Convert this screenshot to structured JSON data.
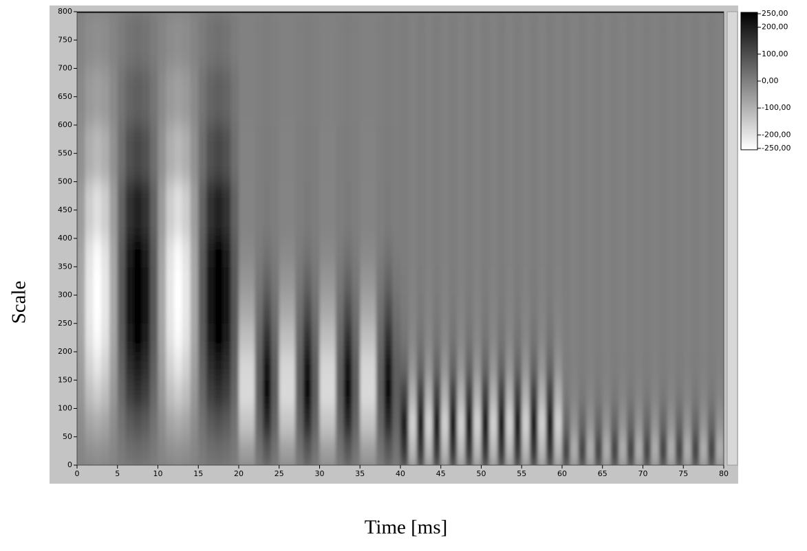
{
  "chart_data": {
    "type": "heatmap",
    "x_label": "Time [ms]",
    "y_label": "Scale",
    "xlim": [
      0,
      80
    ],
    "ylim": [
      0,
      800
    ],
    "xticks": [
      0,
      5,
      10,
      15,
      20,
      25,
      30,
      35,
      40,
      45,
      50,
      55,
      60,
      65,
      70,
      75,
      80
    ],
    "yticks": [
      0,
      50,
      100,
      150,
      200,
      250,
      300,
      350,
      400,
      450,
      500,
      550,
      600,
      650,
      700,
      750,
      800
    ],
    "zlim": [
      -250,
      250
    ],
    "zticks": [
      {
        "value": 250,
        "label": "250,00"
      },
      {
        "value": 200,
        "label": "200,00"
      },
      {
        "value": 100,
        "label": "100,00"
      },
      {
        "value": 0,
        "label": "0,00"
      },
      {
        "value": -100,
        "label": "-100,00"
      },
      {
        "value": -200,
        "label": "-200,00"
      },
      {
        "value": -250,
        "label": "-250,00"
      }
    ],
    "colormap": [
      "#ffffff",
      "#000000"
    ],
    "xbins": [
      0,
      1,
      2,
      3,
      4,
      5,
      6,
      7,
      8,
      9,
      10,
      11,
      12,
      13,
      14,
      15,
      16,
      17,
      18,
      19,
      20,
      21,
      22,
      23,
      24,
      25,
      26,
      27,
      28,
      29,
      30,
      31,
      32,
      33,
      34,
      35,
      36,
      37,
      38,
      39,
      40,
      41,
      42,
      43,
      44,
      45,
      46,
      47,
      48,
      49,
      50,
      51,
      52,
      53,
      54,
      55,
      56,
      57,
      58,
      59,
      60,
      61,
      62,
      63,
      64,
      65,
      66,
      67,
      68,
      69,
      70,
      71,
      72,
      73,
      74,
      75,
      76,
      77,
      78,
      79,
      80
    ],
    "ybins": [
      0,
      50,
      100,
      150,
      200,
      250,
      300,
      350,
      400,
      500,
      600,
      700,
      800
    ],
    "z": [
      [
        -12,
        -31,
        -38,
        -31,
        -12,
        12,
        31,
        38,
        31,
        12,
        -12,
        -31,
        -38,
        -31,
        -12,
        12,
        31,
        38,
        31,
        12,
        -62,
        -62,
        24,
        77,
        24,
        -62,
        -62,
        24,
        77,
        24,
        -62,
        -62,
        24,
        77,
        24,
        -62,
        -62,
        24,
        77,
        24,
        140,
        -112,
        140,
        -112,
        140,
        -112,
        140,
        -112,
        140,
        -112,
        140,
        -112,
        140,
        -112,
        140,
        -112,
        140,
        -112,
        140,
        -112,
        120,
        -96,
        120,
        -96,
        120,
        -96,
        120,
        -96,
        120,
        -96,
        120,
        -96,
        120,
        -96,
        120,
        -96,
        120,
        -96,
        120,
        -96
      ],
      [
        -27,
        -71,
        -88,
        -71,
        -27,
        27,
        71,
        88,
        71,
        27,
        -27,
        -71,
        -88,
        -71,
        -27,
        27,
        71,
        88,
        71,
        27,
        -134,
        -134,
        51,
        165,
        51,
        -134,
        -134,
        51,
        165,
        51,
        -134,
        -134,
        51,
        165,
        51,
        -134,
        -134,
        51,
        165,
        51,
        200,
        -160,
        200,
        -160,
        200,
        -160,
        200,
        -160,
        200,
        -160,
        200,
        -160,
        200,
        -160,
        200,
        -160,
        200,
        -160,
        200,
        -160,
        48,
        -38,
        48,
        -38,
        48,
        -38,
        48,
        -38,
        48,
        -38,
        48,
        -38,
        48,
        -38,
        48,
        -38,
        48,
        -38,
        48,
        -38
      ],
      [
        -47,
        -122,
        -150,
        -122,
        -47,
        47,
        122,
        150,
        122,
        47,
        -47,
        -122,
        -150,
        -122,
        -47,
        47,
        122,
        150,
        122,
        47,
        -178,
        -178,
        68,
        220,
        68,
        -178,
        -178,
        68,
        220,
        68,
        -178,
        -178,
        68,
        220,
        68,
        -178,
        -178,
        68,
        220,
        68,
        120,
        -96,
        120,
        -96,
        120,
        -96,
        120,
        -96,
        120,
        -96,
        120,
        -96,
        120,
        -96,
        120,
        -96,
        120,
        -96,
        120,
        -96,
        12,
        -10,
        12,
        -10,
        12,
        -10,
        12,
        -10,
        12,
        -10,
        12,
        -10,
        12,
        -10,
        12,
        -10,
        12,
        -10,
        12,
        -10
      ],
      [
        -62,
        -162,
        -200,
        -162,
        -62,
        62,
        162,
        200,
        162,
        62,
        -62,
        -162,
        -200,
        -162,
        -62,
        62,
        162,
        200,
        162,
        62,
        -169,
        -169,
        65,
        209,
        65,
        -169,
        -169,
        65,
        209,
        65,
        -169,
        -169,
        65,
        209,
        65,
        -169,
        -169,
        65,
        209,
        65,
        50,
        -40,
        50,
        -40,
        50,
        -40,
        50,
        -40,
        50,
        -40,
        50,
        -40,
        50,
        -40,
        50,
        -40,
        50,
        -40,
        50,
        -40,
        4,
        -3,
        4,
        -3,
        4,
        -3,
        4,
        -3,
        4,
        -3,
        4,
        -3,
        4,
        -3,
        4,
        -3,
        4,
        -3,
        4,
        -3
      ],
      [
        -74,
        -193,
        -238,
        -193,
        -74,
        74,
        193,
        238,
        193,
        74,
        -74,
        -193,
        -238,
        -193,
        -74,
        74,
        193,
        238,
        193,
        74,
        -125,
        -125,
        48,
        154,
        48,
        -125,
        -125,
        48,
        154,
        48,
        -125,
        -125,
        48,
        154,
        48,
        -125,
        -125,
        48,
        154,
        48,
        20,
        -16,
        20,
        -16,
        20,
        -16,
        20,
        -16,
        20,
        -16,
        20,
        -16,
        20,
        -16,
        20,
        -16,
        20,
        -16,
        20,
        -16,
        2,
        -2,
        2,
        -2,
        2,
        -2,
        2,
        -2,
        2,
        -2,
        2,
        -2,
        2,
        -2,
        2,
        -2,
        2,
        -2,
        2,
        -2
      ],
      [
        -78,
        -203,
        -250,
        -203,
        -78,
        78,
        203,
        250,
        203,
        78,
        -78,
        -203,
        -250,
        -203,
        -78,
        78,
        203,
        250,
        203,
        78,
        -80,
        -80,
        31,
        99,
        31,
        -80,
        -80,
        31,
        99,
        31,
        -80,
        -80,
        31,
        99,
        31,
        -80,
        -80,
        31,
        99,
        31,
        10,
        -8,
        10,
        -8,
        10,
        -8,
        10,
        -8,
        10,
        -8,
        10,
        -8,
        10,
        -8,
        10,
        -8,
        10,
        -8,
        10,
        -8,
        2,
        -2,
        2,
        -2,
        2,
        -2,
        2,
        -2,
        2,
        -2,
        2,
        -2,
        2,
        -2,
        2,
        -2,
        2,
        -2,
        2,
        -2
      ],
      [
        -78,
        -203,
        -250,
        -203,
        -78,
        78,
        203,
        250,
        203,
        78,
        -78,
        -203,
        -250,
        -203,
        -78,
        78,
        203,
        250,
        203,
        78,
        -45,
        -45,
        17,
        55,
        17,
        -45,
        -45,
        17,
        55,
        17,
        -45,
        -45,
        17,
        55,
        17,
        -45,
        -45,
        17,
        55,
        17,
        6,
        -5,
        6,
        -5,
        6,
        -5,
        6,
        -5,
        6,
        -5,
        6,
        -5,
        6,
        -5,
        6,
        -5,
        6,
        -5,
        6,
        -5,
        2,
        -2,
        2,
        -2,
        2,
        -2,
        2,
        -2,
        2,
        -2,
        2,
        -2,
        2,
        -2,
        2,
        -2,
        2,
        -2,
        2,
        -2
      ],
      [
        -74,
        -193,
        -238,
        -193,
        -74,
        74,
        193,
        238,
        193,
        74,
        -74,
        -193,
        -238,
        -193,
        -74,
        74,
        193,
        238,
        193,
        74,
        -21,
        -21,
        8,
        26,
        8,
        -21,
        -21,
        8,
        26,
        8,
        -21,
        -21,
        8,
        26,
        8,
        -21,
        -21,
        8,
        26,
        8,
        4,
        -3,
        4,
        -3,
        4,
        -3,
        4,
        -3,
        4,
        -3,
        4,
        -3,
        4,
        -3,
        4,
        -3,
        4,
        -3,
        4,
        -3,
        2,
        -2,
        2,
        -2,
        2,
        -2,
        2,
        -2,
        2,
        -2,
        2,
        -2,
        2,
        -2,
        2,
        -2,
        2,
        -2,
        2,
        -2
      ],
      [
        -58,
        -152,
        -188,
        -152,
        -58,
        58,
        152,
        188,
        152,
        58,
        -58,
        -152,
        -188,
        -152,
        -58,
        58,
        152,
        188,
        152,
        58,
        -9,
        -9,
        3,
        11,
        3,
        -9,
        -9,
        3,
        11,
        3,
        -9,
        -9,
        3,
        11,
        3,
        -9,
        -9,
        3,
        11,
        3,
        4,
        -3,
        4,
        -3,
        4,
        -3,
        4,
        -3,
        4,
        -3,
        4,
        -3,
        4,
        -3,
        4,
        -3,
        4,
        -3,
        4,
        -3,
        2,
        -2,
        2,
        -2,
        2,
        -2,
        2,
        -2,
        2,
        -2,
        2,
        -2,
        2,
        -2,
        2,
        -2,
        2,
        -2,
        2,
        -2
      ],
      [
        -35,
        -92,
        -113,
        -92,
        -35,
        35,
        92,
        113,
        92,
        35,
        -35,
        -92,
        -113,
        -92,
        -35,
        35,
        92,
        113,
        92,
        35,
        -6,
        -6,
        2,
        7,
        2,
        -6,
        -6,
        2,
        7,
        2,
        -6,
        -6,
        2,
        7,
        2,
        -6,
        -6,
        2,
        7,
        2,
        4,
        -3,
        4,
        -3,
        4,
        -3,
        4,
        -3,
        4,
        -3,
        4,
        -3,
        4,
        -3,
        4,
        -3,
        4,
        -3,
        4,
        -3,
        2,
        -2,
        2,
        -2,
        2,
        -2,
        2,
        -2,
        2,
        -2,
        2,
        -2,
        2,
        -2,
        2,
        -2,
        2,
        -2,
        2,
        -2
      ],
      [
        -20,
        -51,
        -63,
        -51,
        -20,
        20,
        51,
        63,
        51,
        20,
        -20,
        -51,
        -63,
        -51,
        -20,
        20,
        51,
        63,
        51,
        20,
        -3,
        -3,
        1,
        4,
        1,
        -3,
        -3,
        1,
        4,
        1,
        -3,
        -3,
        1,
        4,
        1,
        -3,
        -3,
        1,
        4,
        1,
        4,
        -3,
        4,
        -3,
        4,
        -3,
        4,
        -3,
        4,
        -3,
        4,
        -3,
        4,
        -3,
        4,
        -3,
        4,
        -3,
        4,
        -3,
        2,
        -2,
        2,
        -2,
        2,
        -2,
        2,
        -2,
        2,
        -2,
        2,
        -2,
        2,
        -2,
        2,
        -2,
        2,
        -2,
        2,
        -2
      ],
      [
        -9,
        -24,
        -30,
        -24,
        -9,
        9,
        24,
        30,
        24,
        9,
        -9,
        -24,
        -30,
        -24,
        -9,
        9,
        24,
        30,
        24,
        9,
        -3,
        -3,
        1,
        4,
        1,
        -3,
        -3,
        1,
        4,
        1,
        -3,
        -3,
        1,
        4,
        1,
        -3,
        -3,
        1,
        4,
        1,
        4,
        -3,
        4,
        -3,
        4,
        -3,
        4,
        -3,
        4,
        -3,
        4,
        -3,
        4,
        -3,
        4,
        -3,
        4,
        -3,
        4,
        -3,
        2,
        -2,
        2,
        -2,
        2,
        -2,
        2,
        -2,
        2,
        -2,
        2,
        -2,
        2,
        -2,
        2,
        -2,
        2,
        -2,
        2,
        -2
      ]
    ]
  }
}
